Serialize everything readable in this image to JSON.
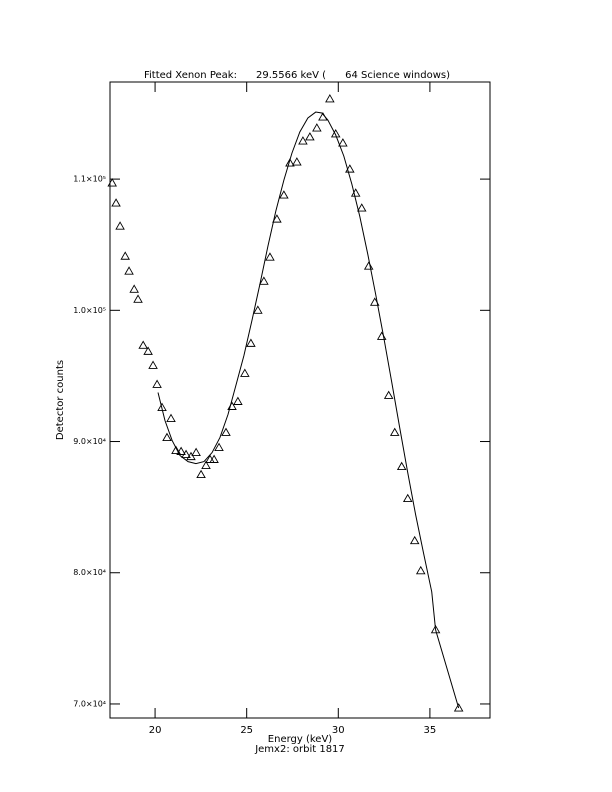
{
  "chart_data": {
    "type": "scatter",
    "title": "Fitted Xenon Peak:      29.5566 keV (      64 Science windows)",
    "x_label": "Energy (keV)",
    "subtitle": "Jemx2: orbit 1817",
    "y_label": "Detector counts",
    "xlim": [
      17.54,
      38.28
    ],
    "ylim": [
      68930,
      117400
    ],
    "xticks": [
      20,
      25,
      30,
      35
    ],
    "yticks": [
      {
        "value": 70000,
        "label": "7.0×10⁴"
      },
      {
        "value": 80000,
        "label": "8.0×10⁴"
      },
      {
        "value": 90000,
        "label": "9.0×10⁴"
      },
      {
        "value": 100000,
        "label": "1.0×10⁵"
      },
      {
        "value": 110000,
        "label": "1.1×10⁵"
      }
    ],
    "series": [
      {
        "marker": "triangle",
        "color": "#000000",
        "x": [
          17.66,
          17.87,
          18.09,
          18.37,
          18.58,
          18.86,
          19.07,
          19.35,
          19.62,
          19.89,
          20.11,
          20.38,
          20.65,
          20.87,
          21.14,
          21.42,
          21.69,
          21.96,
          22.24,
          22.51,
          22.78,
          23.0,
          23.22,
          23.49,
          23.87,
          24.2,
          24.52,
          24.9,
          25.23,
          25.61,
          25.94,
          26.27,
          26.65,
          27.03,
          27.36,
          27.74,
          28.07,
          28.45,
          28.83,
          29.16,
          29.54,
          29.86,
          30.25,
          30.63,
          30.95,
          31.28,
          31.66,
          31.99,
          32.37,
          32.75,
          33.08,
          33.46,
          33.79,
          34.17,
          34.5,
          35.31,
          36.57
        ],
        "values": [
          109700,
          108170,
          106410,
          104120,
          102980,
          101600,
          100840,
          97330,
          96870,
          95800,
          94350,
          92590,
          90300,
          91750,
          89310,
          89240,
          89010,
          88850,
          89160,
          87480,
          88170,
          88630,
          88630,
          89540,
          90690,
          92670,
          93050,
          95190,
          97480,
          100000,
          102210,
          104050,
          106950,
          108780,
          111220,
          111300,
          112900,
          113210,
          113890,
          114730,
          116110,
          113440,
          112750,
          110760,
          108930,
          107790,
          103360,
          100610,
          98010,
          93510,
          90690,
          88090,
          85650,
          82440,
          80150,
          75650,
          69690
        ]
      },
      {
        "marker": "none",
        "line": true,
        "color": "#000000",
        "x": [
          20.16,
          20.54,
          20.93,
          21.36,
          21.8,
          22.23,
          22.67,
          23.11,
          23.54,
          23.98,
          24.41,
          24.85,
          25.29,
          25.72,
          26.16,
          26.59,
          27.03,
          27.47,
          27.9,
          28.34,
          28.77,
          29.1,
          29.43,
          29.86,
          30.3,
          30.74,
          31.17,
          31.61,
          32.04,
          32.48,
          32.92,
          33.35,
          33.79,
          34.22,
          34.66,
          35.1,
          35.31,
          36.57
        ],
        "values": [
          93740,
          91600,
          90080,
          88930,
          88470,
          88320,
          88470,
          89160,
          90300,
          92060,
          94270,
          96560,
          99240,
          101980,
          104890,
          107560,
          109920,
          111980,
          113590,
          114660,
          115110,
          115040,
          114500,
          113360,
          111760,
          109620,
          107180,
          104270,
          101220,
          97940,
          94500,
          91070,
          87630,
          84430,
          81450,
          78550,
          75650,
          69690
        ]
      }
    ]
  }
}
